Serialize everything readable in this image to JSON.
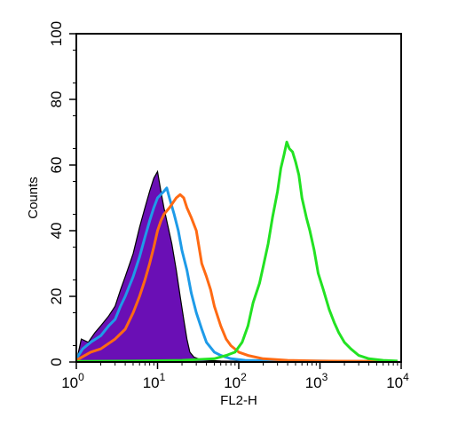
{
  "chart_data": {
    "type": "line",
    "title": "",
    "xlabel": "FL2-H",
    "ylabel": "Counts",
    "x_scale": "log",
    "xlim": [
      1,
      10000
    ],
    "ylim": [
      0,
      100
    ],
    "grid": false,
    "x_ticks": [
      {
        "value": 1,
        "base": "10",
        "exp": "0"
      },
      {
        "value": 10,
        "base": "10",
        "exp": "1"
      },
      {
        "value": 100,
        "base": "10",
        "exp": "2"
      },
      {
        "value": 1000,
        "base": "10",
        "exp": "3"
      },
      {
        "value": 10000,
        "base": "10",
        "exp": "4"
      }
    ],
    "y_ticks": [
      {
        "value": 0,
        "label": "0"
      },
      {
        "value": 20,
        "label": "20"
      },
      {
        "value": 40,
        "label": "40"
      },
      {
        "value": 60,
        "label": "60"
      },
      {
        "value": 80,
        "label": "80"
      },
      {
        "value": 100,
        "label": "100"
      }
    ],
    "series": [
      {
        "color": "#6a0fb5",
        "fill": true,
        "points": [
          [
            1,
            0
          ],
          [
            1.15,
            7
          ],
          [
            1.4,
            6
          ],
          [
            1.7,
            9
          ],
          [
            2,
            11
          ],
          [
            2.5,
            14
          ],
          [
            3,
            17
          ],
          [
            3.5,
            22
          ],
          [
            4,
            26
          ],
          [
            5,
            33
          ],
          [
            6,
            41
          ],
          [
            7,
            47
          ],
          [
            8,
            52
          ],
          [
            9,
            56
          ],
          [
            10,
            58
          ],
          [
            11,
            52
          ],
          [
            12,
            47
          ],
          [
            13,
            43
          ],
          [
            15,
            36
          ],
          [
            17,
            28
          ],
          [
            19,
            20
          ],
          [
            21,
            13
          ],
          [
            23,
            7
          ],
          [
            25,
            3
          ],
          [
            28,
            1.5
          ],
          [
            35,
            0.6
          ],
          [
            60,
            0.3
          ],
          [
            300,
            0.1
          ],
          [
            9000,
            0
          ]
        ]
      },
      {
        "color": "#1e9be8",
        "fill": false,
        "points": [
          [
            1,
            1
          ],
          [
            1.2,
            4
          ],
          [
            1.5,
            6
          ],
          [
            2,
            8
          ],
          [
            2.5,
            11
          ],
          [
            3,
            13
          ],
          [
            3.5,
            17
          ],
          [
            4,
            20
          ],
          [
            5,
            26
          ],
          [
            6,
            32
          ],
          [
            7,
            38
          ],
          [
            8,
            43
          ],
          [
            9,
            47
          ],
          [
            10,
            50
          ],
          [
            12,
            52
          ],
          [
            13,
            53
          ],
          [
            14,
            50
          ],
          [
            16,
            45
          ],
          [
            18,
            40
          ],
          [
            20,
            34
          ],
          [
            23,
            28
          ],
          [
            26,
            21
          ],
          [
            30,
            15
          ],
          [
            35,
            10
          ],
          [
            40,
            6
          ],
          [
            50,
            3
          ],
          [
            60,
            2
          ],
          [
            80,
            1
          ],
          [
            120,
            0.5
          ],
          [
            400,
            0.3
          ],
          [
            1000,
            0.3
          ],
          [
            3000,
            0.2
          ],
          [
            9000,
            0.2
          ]
        ]
      },
      {
        "color": "#ff6a13",
        "fill": false,
        "points": [
          [
            1,
            0.5
          ],
          [
            1.5,
            3
          ],
          [
            2,
            4
          ],
          [
            3,
            7
          ],
          [
            4,
            10
          ],
          [
            5,
            15
          ],
          [
            6,
            20
          ],
          [
            7,
            25
          ],
          [
            8,
            30
          ],
          [
            9,
            35
          ],
          [
            10,
            40
          ],
          [
            11,
            43
          ],
          [
            12,
            45
          ],
          [
            14,
            47
          ],
          [
            17,
            50
          ],
          [
            19,
            51
          ],
          [
            21,
            50
          ],
          [
            23,
            47
          ],
          [
            26,
            44
          ],
          [
            30,
            40
          ],
          [
            35,
            30
          ],
          [
            40,
            26
          ],
          [
            45,
            22
          ],
          [
            50,
            17
          ],
          [
            60,
            11
          ],
          [
            70,
            7
          ],
          [
            80,
            5
          ],
          [
            100,
            3
          ],
          [
            130,
            2
          ],
          [
            200,
            1
          ],
          [
            400,
            0.5
          ],
          [
            1000,
            0.3
          ],
          [
            9000,
            0.2
          ]
        ]
      },
      {
        "color": "#22e222",
        "fill": false,
        "points": [
          [
            1,
            0.2
          ],
          [
            5,
            0.3
          ],
          [
            20,
            0.5
          ],
          [
            50,
            1
          ],
          [
            70,
            2
          ],
          [
            90,
            3
          ],
          [
            110,
            6
          ],
          [
            130,
            11
          ],
          [
            150,
            18
          ],
          [
            180,
            24
          ],
          [
            200,
            29
          ],
          [
            230,
            36
          ],
          [
            260,
            44
          ],
          [
            300,
            52
          ],
          [
            330,
            59
          ],
          [
            360,
            63
          ],
          [
            390,
            67
          ],
          [
            420,
            65
          ],
          [
            460,
            64
          ],
          [
            500,
            61
          ],
          [
            550,
            57
          ],
          [
            600,
            50
          ],
          [
            680,
            44
          ],
          [
            750,
            40
          ],
          [
            850,
            34
          ],
          [
            950,
            27
          ],
          [
            1100,
            22
          ],
          [
            1300,
            16
          ],
          [
            1500,
            12
          ],
          [
            1700,
            9
          ],
          [
            2000,
            6
          ],
          [
            2400,
            4
          ],
          [
            3000,
            2
          ],
          [
            4000,
            1
          ],
          [
            6000,
            0.5
          ],
          [
            9000,
            0.3
          ]
        ]
      }
    ]
  }
}
